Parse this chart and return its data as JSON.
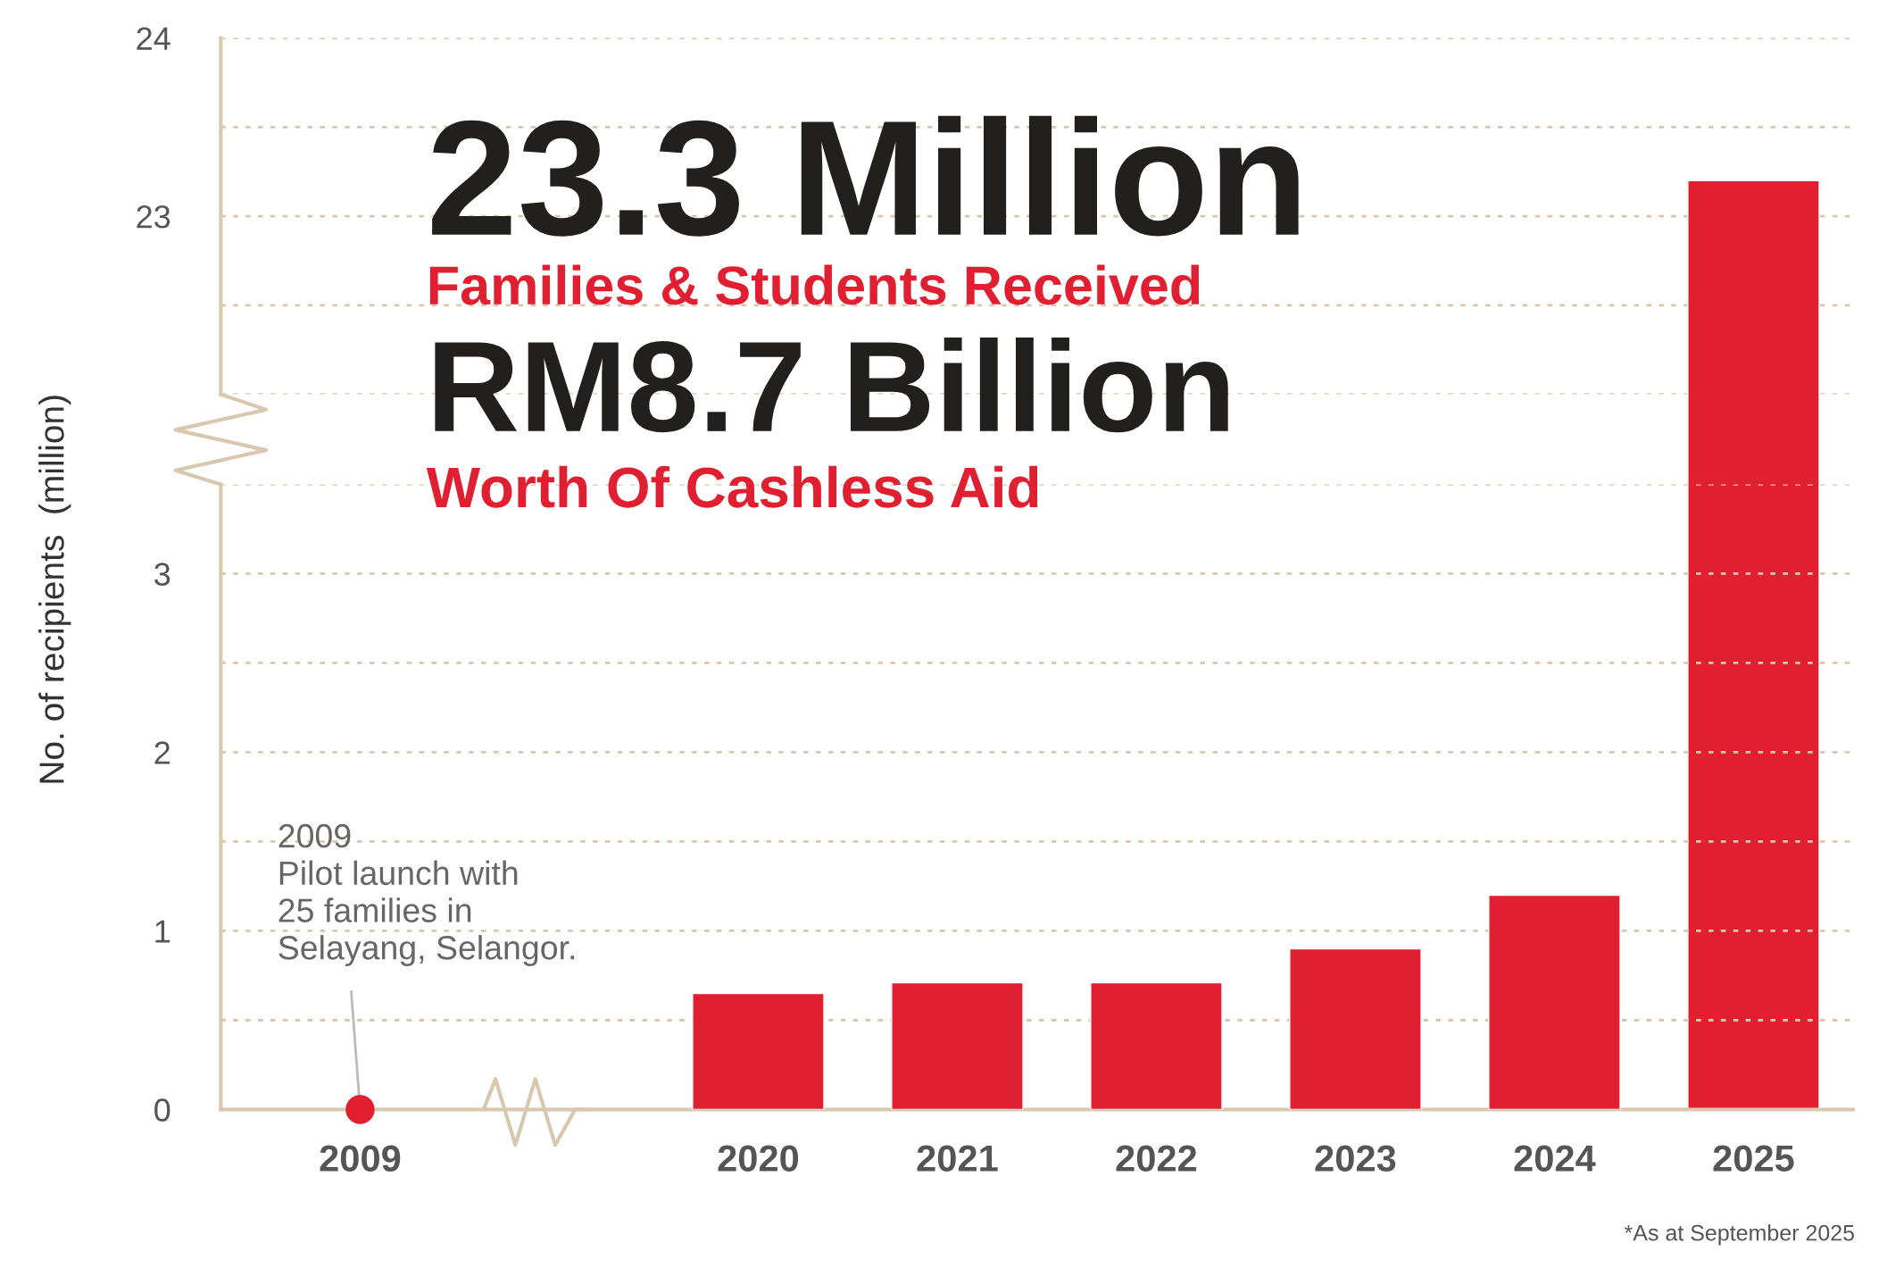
{
  "chart_data": [
    {
      "type": "bar",
      "categories": [
        "2009",
        null,
        "2020",
        "2021",
        "2022",
        "2023",
        "2024",
        "2025"
      ],
      "series": [
        {
          "color": "#e01f30",
          "values": [
            null,
            null,
            null,
            null,
            null,
            null,
            null,
            23.2
          ]
        }
      ],
      "ylim": [
        22,
        24
      ],
      "yticks": [
        {
          "value": 22,
          "label": null
        },
        {
          "value": 22.5,
          "label": null
        },
        23,
        {
          "value": 23.5,
          "label": null
        },
        24
      ],
      "grid": "y",
      "tick_labels": "y",
      "annotations": [
        "23.3 Million",
        "Families & Students Received",
        "RM8.7 Billion",
        "Worth Of Cashless Aid"
      ]
    },
    {
      "type": "bar",
      "categories": [
        "2009",
        null,
        "2020",
        "2021",
        "2022",
        "2023",
        "2024",
        "2025"
      ],
      "series": [
        {
          "color": "#e01f30",
          "values": [
            null,
            null,
            0.65,
            0.71,
            0.71,
            0.9,
            1.2,
            null
          ]
        },
        {
          "type": "scatter",
          "color": "#e01f30",
          "values": [
            0,
            null,
            null,
            null,
            null,
            null,
            null,
            null
          ]
        }
      ],
      "ylim": [
        0,
        3.5
      ],
      "yticks": [
        0,
        {
          "value": 0.5,
          "label": null
        },
        1,
        {
          "value": 1.5,
          "label": null
        },
        2,
        {
          "value": 2.5,
          "label": null
        },
        3,
        {
          "value": 3.5,
          "label": null
        }
      ],
      "ylabel": "No. of recipients  (million)",
      "grid": "y",
      "marker": "circle",
      "annotations": [
        {
          "text": "2009\nPilot launch with\n25 families in\nSelayang, Selangor.",
          "x": "2009",
          "y": 0
        },
        "*As at September 2025"
      ]
    }
  ]
}
